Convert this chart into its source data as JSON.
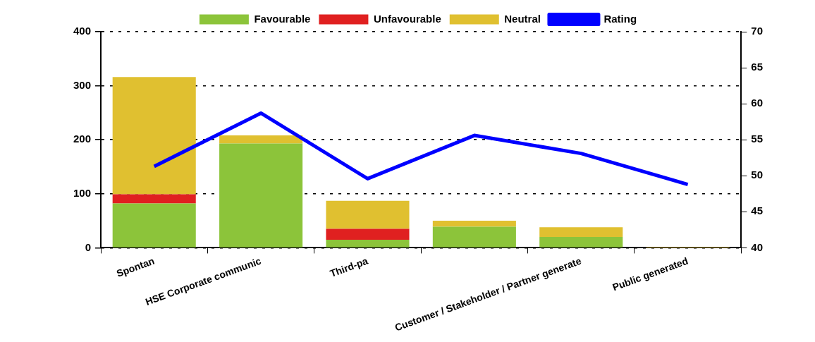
{
  "chart_data": {
    "type": "bar",
    "stacked": true,
    "categories": [
      "Spontan",
      "HSE Corporate communic",
      "Third-pa",
      null,
      "Customer / Stakeholder / Partner generate",
      "Public generated"
    ],
    "series": [
      {
        "name": "Favourable",
        "color": "#8cc43a",
        "values": [
          82,
          193,
          15,
          39,
          20,
          0
        ]
      },
      {
        "name": "Unfavourable",
        "color": "#e02020",
        "values": [
          17,
          0,
          20,
          0,
          0,
          0
        ]
      },
      {
        "name": "Neutral",
        "color": "#e0c030",
        "values": [
          217,
          15,
          52,
          11,
          18,
          2
        ]
      },
      {
        "name": "Rating",
        "type": "line",
        "axis": "y2",
        "color": "#0000ff",
        "values": [
          51.3,
          58.7,
          49.6,
          55.6,
          53.1,
          48.8
        ]
      }
    ],
    "ylim": [
      0,
      400
    ],
    "yticks": [
      0,
      100,
      200,
      300,
      400
    ],
    "y2lim": [
      40,
      70
    ],
    "y2ticks": [
      40,
      45,
      50,
      55,
      60,
      65,
      70
    ],
    "grid": "y",
    "legend": "top",
    "marker": "none",
    "line_style": "solid"
  }
}
